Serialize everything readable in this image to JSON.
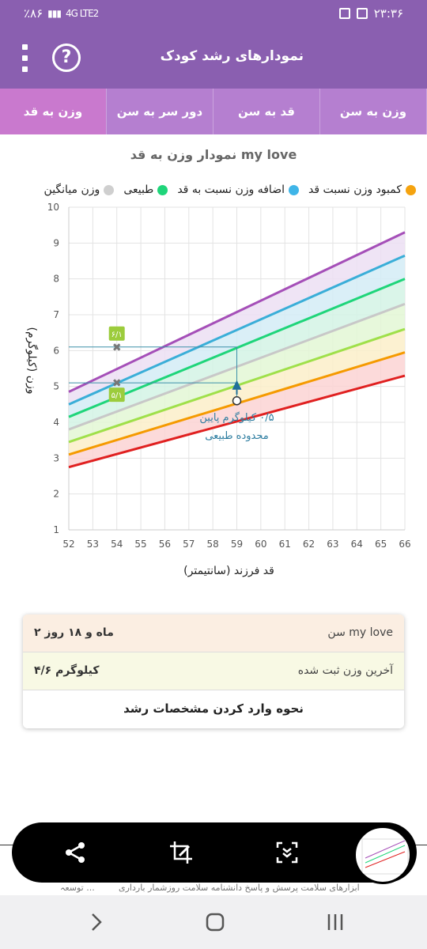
{
  "status_bar": {
    "left_text": "٪۸۶",
    "network": "4G LTE2",
    "time": "۲۳:۳۶"
  },
  "app_bar": {
    "title": "نمودارهای رشد کودک",
    "help_label": "?"
  },
  "tabs": [
    {
      "label": "وزن به سن"
    },
    {
      "label": "قد به سن"
    },
    {
      "label": "دور سر به سن"
    },
    {
      "label": "وزن به قد"
    }
  ],
  "chart_title": "نمودار وزن به قد  my love",
  "legend": [
    {
      "label": "کمبود وزن نسبت قد",
      "color": "#f5a30f"
    },
    {
      "label": "اضافه وزن نسبت به قد",
      "color": "#3fb5e8"
    },
    {
      "label": "طبیعی",
      "color": "#1fd57a"
    },
    {
      "label": "وزن میانگین",
      "color": "#cfcfcf"
    }
  ],
  "chart_data": {
    "type": "line",
    "xlabel": "قد فرزند (سانتیمتر)",
    "ylabel": "وزن (کیلوگرم)",
    "xlim": [
      52,
      66
    ],
    "ylim": [
      1,
      10
    ],
    "x_ticks": [
      52,
      53,
      54,
      55,
      56,
      57,
      58,
      59,
      60,
      61,
      62,
      63,
      64,
      65,
      66
    ],
    "y_ticks": [
      1,
      2,
      3,
      4,
      5,
      6,
      7,
      8,
      9,
      10
    ],
    "curves": [
      {
        "name": "red",
        "color": "#e02020",
        "x": [
          52,
          66
        ],
        "y": [
          2.75,
          5.3
        ]
      },
      {
        "name": "orange",
        "color": "#f59a00",
        "x": [
          52,
          66
        ],
        "y": [
          3.1,
          5.95
        ]
      },
      {
        "name": "yellow-green",
        "color": "#9fe04a",
        "x": [
          52,
          66
        ],
        "y": [
          3.45,
          6.6
        ]
      },
      {
        "name": "gray",
        "color": "#c8c8c8",
        "x": [
          52,
          66
        ],
        "y": [
          3.8,
          7.3
        ]
      },
      {
        "name": "green",
        "color": "#1fd57a",
        "x": [
          52,
          66
        ],
        "y": [
          4.15,
          8.0
        ]
      },
      {
        "name": "blue",
        "color": "#3aaed8",
        "x": [
          52,
          66
        ],
        "y": [
          4.5,
          8.65
        ]
      },
      {
        "name": "purple",
        "color": "#a54fb8",
        "x": [
          52,
          66
        ],
        "y": [
          4.85,
          9.3
        ]
      }
    ],
    "bands": [
      {
        "from": "red",
        "to": "orange",
        "color": "#fbd3d3"
      },
      {
        "from": "orange",
        "to": "yellow-green",
        "color": "#fbefc9"
      },
      {
        "from": "yellow-green",
        "to": "gray",
        "color": "#e3f7d5"
      },
      {
        "from": "gray",
        "to": "green",
        "color": "#d3f3e5"
      },
      {
        "from": "green",
        "to": "blue",
        "color": "#d3ecf6"
      },
      {
        "from": "blue",
        "to": "purple",
        "color": "#ecdff3"
      }
    ],
    "points": [
      {
        "x": 54,
        "y": 6.1,
        "label": "۶/۱"
      },
      {
        "x": 54,
        "y": 5.1,
        "label": "۵/۱"
      }
    ],
    "marker": {
      "x": 59,
      "y": 4.6
    },
    "guide_lines": [
      {
        "x": 59,
        "y": 6.1
      },
      {
        "x": 59,
        "y": 5.1
      }
    ],
    "annotation": [
      "۰/۵ کیلوگرم پایین",
      "محدوده طبیعی"
    ]
  },
  "info": {
    "age_label": "سن  my love",
    "age_value": "۲ ماه و ۱۸ روز",
    "weight_label": "آخرین وزن ثبت شده",
    "weight_value": "۴/۶ کیلوگرم",
    "howto_label": "نحوه وارد کردن مشخصات رشد"
  },
  "bottom_strip": {
    "text1": "توسعہ ...",
    "text2": "ابزارهای سلامت  پرسش و پاسخ  دانشنامه سلامت  روزشمار بارداری"
  }
}
